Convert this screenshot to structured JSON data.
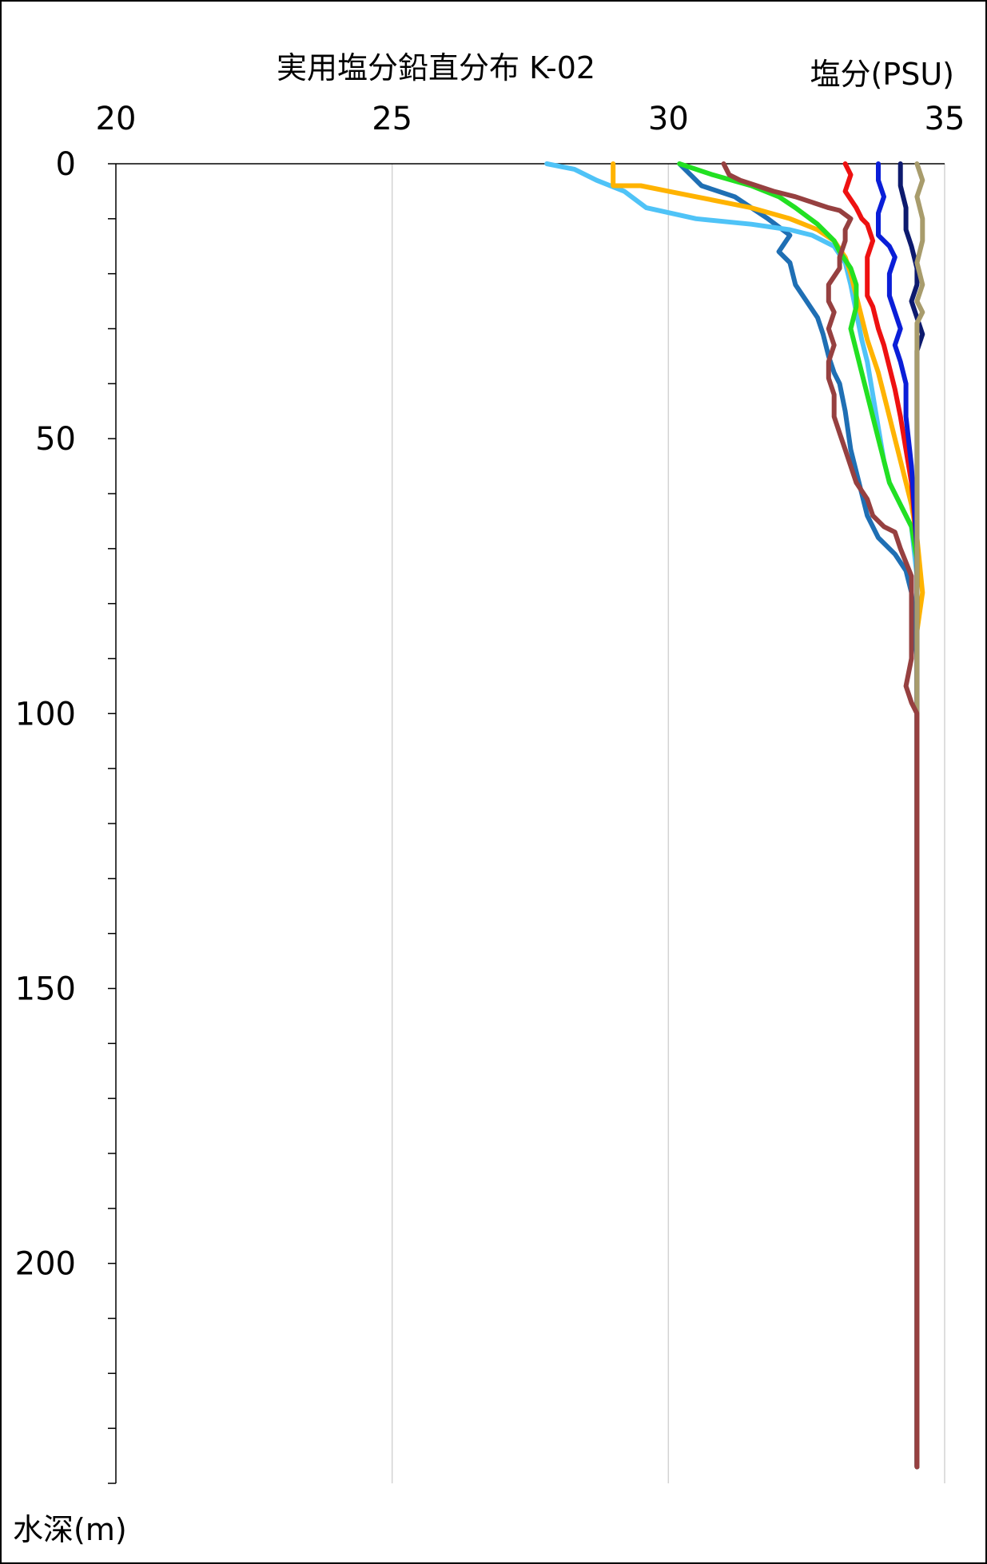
{
  "chart_data": {
    "type": "line",
    "title": "実用塩分鉛直分布 K-02",
    "xlabel": "塩分(PSU)",
    "ylabel": "水深(m)",
    "x_axis_position": "top",
    "y_axis_inverted": true,
    "xlim": [
      20,
      35
    ],
    "ylim": [
      0,
      240
    ],
    "x_ticks": [
      "20",
      "25",
      "30",
      "35"
    ],
    "y_ticks": [
      "0",
      "50",
      "100",
      "150",
      "200"
    ],
    "grid": "vertical-major",
    "series": [
      {
        "color": "#1f6fb4",
        "points": [
          [
            30.2,
            0
          ],
          [
            30.4,
            2
          ],
          [
            30.6,
            4
          ],
          [
            31.2,
            6
          ],
          [
            31.8,
            10
          ],
          [
            32.2,
            13
          ],
          [
            32.0,
            16
          ],
          [
            32.2,
            18
          ],
          [
            32.3,
            22
          ],
          [
            32.5,
            25
          ],
          [
            32.7,
            28
          ],
          [
            32.8,
            31
          ],
          [
            32.9,
            35
          ],
          [
            33.0,
            38
          ],
          [
            33.1,
            40
          ],
          [
            33.2,
            45
          ],
          [
            33.3,
            52
          ],
          [
            33.4,
            56
          ],
          [
            33.5,
            60
          ],
          [
            33.6,
            64
          ],
          [
            33.8,
            68
          ],
          [
            34.1,
            71
          ],
          [
            34.3,
            74
          ],
          [
            34.4,
            78
          ],
          [
            34.5,
            90
          ],
          [
            34.5,
            237
          ]
        ]
      },
      {
        "color": "#4fc3f7",
        "points": [
          [
            27.8,
            0
          ],
          [
            28.3,
            1
          ],
          [
            28.7,
            3
          ],
          [
            29.2,
            5
          ],
          [
            29.6,
            8
          ],
          [
            30.5,
            10
          ],
          [
            31.5,
            11
          ],
          [
            32.2,
            12
          ],
          [
            32.6,
            13
          ],
          [
            33.0,
            15
          ],
          [
            33.2,
            18
          ],
          [
            33.3,
            22
          ],
          [
            33.4,
            27
          ],
          [
            33.5,
            32
          ],
          [
            33.6,
            36
          ],
          [
            33.7,
            42
          ],
          [
            33.8,
            48
          ],
          [
            33.9,
            54
          ],
          [
            34.0,
            58
          ],
          [
            34.2,
            62
          ],
          [
            34.4,
            66
          ],
          [
            34.5,
            75
          ],
          [
            34.5,
            237
          ]
        ]
      },
      {
        "color": "#ffb300",
        "points": [
          [
            29.0,
            0
          ],
          [
            29.0,
            4
          ],
          [
            29.5,
            4
          ],
          [
            30.0,
            5
          ],
          [
            30.5,
            6
          ],
          [
            31.5,
            8
          ],
          [
            32.2,
            10
          ],
          [
            32.7,
            12
          ],
          [
            33.0,
            14
          ],
          [
            33.2,
            17
          ],
          [
            33.3,
            20
          ],
          [
            33.4,
            24
          ],
          [
            33.5,
            28
          ],
          [
            33.6,
            32
          ],
          [
            33.7,
            35
          ],
          [
            33.8,
            38
          ],
          [
            33.9,
            42
          ],
          [
            34.0,
            46
          ],
          [
            34.1,
            50
          ],
          [
            34.2,
            54
          ],
          [
            34.3,
            58
          ],
          [
            34.4,
            62
          ],
          [
            34.5,
            68
          ],
          [
            34.6,
            78
          ],
          [
            34.5,
            85
          ],
          [
            34.5,
            237
          ]
        ]
      },
      {
        "color": "#22e022",
        "points": [
          [
            30.2,
            0
          ],
          [
            30.8,
            2
          ],
          [
            31.5,
            4
          ],
          [
            32.0,
            6
          ],
          [
            32.3,
            8
          ],
          [
            32.7,
            11
          ],
          [
            33.0,
            14
          ],
          [
            33.1,
            16
          ],
          [
            33.3,
            19
          ],
          [
            33.4,
            22
          ],
          [
            33.4,
            26
          ],
          [
            33.3,
            30
          ],
          [
            33.4,
            34
          ],
          [
            33.5,
            38
          ],
          [
            33.6,
            42
          ],
          [
            33.7,
            46
          ],
          [
            33.8,
            50
          ],
          [
            33.9,
            54
          ],
          [
            34.0,
            58
          ],
          [
            34.2,
            62
          ],
          [
            34.4,
            66
          ],
          [
            34.5,
            72
          ],
          [
            34.5,
            237
          ]
        ]
      },
      {
        "color": "#ee1111",
        "points": [
          [
            33.2,
            0
          ],
          [
            33.3,
            2
          ],
          [
            33.2,
            5
          ],
          [
            33.4,
            8
          ],
          [
            33.5,
            10
          ],
          [
            33.6,
            11
          ],
          [
            33.7,
            14
          ],
          [
            33.6,
            17
          ],
          [
            33.6,
            20
          ],
          [
            33.6,
            24
          ],
          [
            33.7,
            26
          ],
          [
            33.8,
            30
          ],
          [
            33.9,
            33
          ],
          [
            34.0,
            37
          ],
          [
            34.1,
            41
          ],
          [
            34.2,
            46
          ],
          [
            34.3,
            52
          ],
          [
            34.4,
            58
          ],
          [
            34.5,
            70
          ],
          [
            34.5,
            237
          ]
        ]
      },
      {
        "color": "#0a1ed8",
        "points": [
          [
            33.8,
            0
          ],
          [
            33.8,
            3
          ],
          [
            33.9,
            6
          ],
          [
            33.8,
            9
          ],
          [
            33.8,
            13
          ],
          [
            34.0,
            15
          ],
          [
            34.1,
            17
          ],
          [
            34.0,
            20
          ],
          [
            34.0,
            24
          ],
          [
            34.1,
            27
          ],
          [
            34.2,
            30
          ],
          [
            34.1,
            33
          ],
          [
            34.2,
            36
          ],
          [
            34.3,
            40
          ],
          [
            34.3,
            46
          ],
          [
            34.4,
            55
          ],
          [
            34.5,
            70
          ],
          [
            34.5,
            237
          ]
        ]
      },
      {
        "color": "#0d1a6e",
        "points": [
          [
            34.2,
            0
          ],
          [
            34.2,
            4
          ],
          [
            34.3,
            8
          ],
          [
            34.3,
            12
          ],
          [
            34.4,
            15
          ],
          [
            34.5,
            19
          ],
          [
            34.5,
            22
          ],
          [
            34.4,
            25
          ],
          [
            34.5,
            28
          ],
          [
            34.6,
            31
          ],
          [
            34.5,
            34
          ],
          [
            34.5,
            40
          ],
          [
            34.5,
            237
          ]
        ]
      },
      {
        "color": "#a89c6c",
        "points": [
          [
            34.5,
            0
          ],
          [
            34.6,
            3
          ],
          [
            34.5,
            6
          ],
          [
            34.6,
            10
          ],
          [
            34.6,
            14
          ],
          [
            34.5,
            18
          ],
          [
            34.6,
            22
          ],
          [
            34.5,
            25
          ],
          [
            34.6,
            27
          ],
          [
            34.5,
            29
          ],
          [
            34.5,
            35
          ],
          [
            34.5,
            237
          ]
        ]
      },
      {
        "color": "#964040",
        "points": [
          [
            31.0,
            0
          ],
          [
            31.1,
            2
          ],
          [
            31.3,
            3
          ],
          [
            31.6,
            4
          ],
          [
            31.9,
            5
          ],
          [
            32.3,
            6
          ],
          [
            32.6,
            7
          ],
          [
            32.9,
            8
          ],
          [
            33.1,
            8.5
          ],
          [
            33.3,
            10
          ],
          [
            33.2,
            12
          ],
          [
            33.2,
            14
          ],
          [
            33.1,
            17
          ],
          [
            33.1,
            19
          ],
          [
            32.9,
            22
          ],
          [
            32.9,
            25
          ],
          [
            33.0,
            27
          ],
          [
            32.9,
            30
          ],
          [
            33.0,
            33
          ],
          [
            32.9,
            36
          ],
          [
            32.9,
            39
          ],
          [
            33.0,
            42
          ],
          [
            33.0,
            46
          ],
          [
            33.1,
            49
          ],
          [
            33.2,
            52
          ],
          [
            33.3,
            55
          ],
          [
            33.4,
            58
          ],
          [
            33.6,
            61
          ],
          [
            33.7,
            64
          ],
          [
            33.9,
            66
          ],
          [
            34.1,
            67
          ],
          [
            34.2,
            70
          ],
          [
            34.4,
            75
          ],
          [
            34.4,
            80
          ],
          [
            34.4,
            85
          ],
          [
            34.4,
            90
          ],
          [
            34.3,
            95
          ],
          [
            34.4,
            98
          ],
          [
            34.5,
            100
          ],
          [
            34.5,
            237
          ]
        ]
      }
    ]
  }
}
